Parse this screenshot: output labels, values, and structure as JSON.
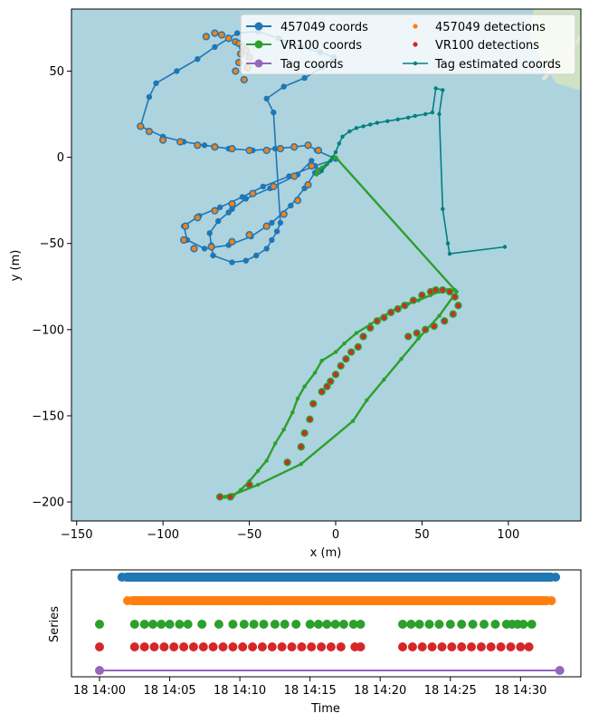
{
  "colors": {
    "c457049": "#1f77b4",
    "c457049_det": "#ff7f0e",
    "vr100": "#2ca02c",
    "vr100_det": "#d62728",
    "tag": "#9467bd",
    "tag_est": "#008080",
    "water": "#add3df",
    "land": "#cfe3c4"
  },
  "chart_data": [
    {
      "type": "scatter",
      "title": "",
      "xlabel": "x (m)",
      "ylabel": "y (m)",
      "xlim": [
        -153,
        142
      ],
      "ylim": [
        -211,
        86
      ],
      "xticks": [
        -150,
        -100,
        -50,
        0,
        50,
        100
      ],
      "yticks": [
        -200,
        -150,
        -100,
        -50,
        0,
        50
      ],
      "xtick_labels": [
        "−150",
        "−100",
        "−50",
        "0",
        "50",
        "100"
      ],
      "ytick_labels": [
        "−200",
        "−150",
        "−100",
        "−50",
        "0",
        "50"
      ],
      "grid": false,
      "background": "satellite basemap (water)",
      "legend": {
        "placement": "top-right",
        "entries": [
          {
            "label": "457049 coords",
            "kind": "line-marker",
            "color": "#1f77b4"
          },
          {
            "label": "457049 detections",
            "kind": "marker",
            "color": "#ff7f0e"
          },
          {
            "label": "VR100 coords",
            "kind": "line-marker",
            "color": "#2ca02c"
          },
          {
            "label": "VR100 detections",
            "kind": "marker",
            "color": "#d62728"
          },
          {
            "label": "Tag coords",
            "kind": "line-marker",
            "color": "#9467bd"
          },
          {
            "label": "Tag estimated coords",
            "kind": "line-small",
            "color": "#008080"
          }
        ]
      },
      "series": [
        {
          "name": "457049 coords",
          "x": [
            -14,
            -22,
            -38,
            -52,
            -60,
            -62,
            -68,
            -73,
            -72,
            -71,
            -60,
            -52,
            -46,
            -40,
            -37,
            -34,
            -32,
            -36,
            -40,
            -30,
            -18,
            -8,
            -1,
            -9,
            -20,
            -33,
            -45,
            -57,
            -70,
            -80,
            -92,
            -104,
            -108,
            -113,
            -100,
            -88,
            -76,
            -62,
            -48,
            -35,
            -24,
            -16,
            -11,
            0,
            -12,
            -27,
            -42,
            -54,
            -67,
            -79,
            -88,
            -86,
            -76,
            -62,
            -49,
            -37,
            -26,
            -18,
            -12
          ],
          "y": [
            -2,
            -10,
            -18,
            -24,
            -30,
            -32,
            -37,
            -44,
            -51,
            -57,
            -61,
            -60,
            -57,
            -53,
            -48,
            -43,
            -38,
            26,
            34,
            41,
            46,
            52,
            58,
            61,
            64,
            69,
            73,
            72,
            64,
            57,
            50,
            43,
            35,
            18,
            12,
            9,
            7,
            5,
            4,
            5,
            6,
            7,
            4,
            -1,
            -5,
            -11,
            -17,
            -23,
            -29,
            -34,
            -40,
            -48,
            -53,
            -51,
            -46,
            -38,
            -28,
            -18,
            -9
          ]
        },
        {
          "name": "457049 detections",
          "x": [
            -113,
            -108,
            -100,
            -90,
            -80,
            -70,
            -60,
            -50,
            -40,
            -32,
            -24,
            -16,
            -10,
            -14,
            -24,
            -36,
            -48,
            -60,
            -70,
            -80,
            -87,
            -88,
            -82,
            -72,
            -60,
            -50,
            -40,
            -30,
            -22,
            -16,
            -10,
            -75,
            -70,
            -66,
            -62,
            -58,
            -56,
            -54,
            -55,
            -56,
            -58,
            -52,
            -50,
            -51,
            -53
          ],
          "y": [
            18,
            15,
            10,
            9,
            7,
            6,
            5,
            4,
            4,
            5,
            6,
            7,
            4,
            -5,
            -11,
            -17,
            -21,
            -27,
            -31,
            -35,
            -40,
            -48,
            -53,
            -52,
            -49,
            -45,
            -40,
            -33,
            -25,
            -16,
            -8,
            70,
            72,
            71,
            69,
            67,
            66,
            64,
            60,
            55,
            50,
            62,
            58,
            52,
            45
          ]
        },
        {
          "name": "VR100 coords",
          "x": [
            -2,
            -5,
            -10,
            -11,
            -8,
            0,
            70,
            60,
            48,
            38,
            28,
            18,
            10,
            -20,
            -45,
            -60,
            -67,
            -64,
            -59,
            -55,
            -50,
            -45,
            -40,
            -35,
            -30,
            -25,
            -22,
            -18,
            -12,
            -8,
            0,
            5,
            12,
            20,
            28,
            35,
            42,
            48,
            55,
            60,
            65,
            69
          ],
          "y": [
            0,
            -4,
            -8,
            -10,
            -6,
            0,
            -78,
            -92,
            -105,
            -117,
            -129,
            -141,
            -153,
            -178,
            -190,
            -196,
            -197,
            -197,
            -196,
            -193,
            -188,
            -182,
            -176,
            -166,
            -158,
            -148,
            -140,
            -133,
            -125,
            -118,
            -113,
            -108,
            -102,
            -97,
            -92,
            -88,
            -85,
            -83,
            -80,
            -78,
            -77,
            -77
          ]
        },
        {
          "name": "VR100 detections",
          "x": [
            -67,
            -61,
            -50,
            -28,
            -20,
            -18,
            -15,
            -13,
            -8,
            -5,
            -3,
            0,
            3,
            6,
            9,
            13,
            16,
            20,
            24,
            28,
            32,
            36,
            40,
            45,
            50,
            55,
            58,
            62,
            66,
            69,
            71,
            68,
            63,
            57,
            52,
            47,
            42
          ],
          "y": [
            -197,
            -197,
            -190,
            -177,
            -168,
            -160,
            -152,
            -143,
            -136,
            -133,
            -130,
            -126,
            -121,
            -117,
            -113,
            -110,
            -104,
            -99,
            -95,
            -93,
            -90,
            -88,
            -86,
            -83,
            -80,
            -78,
            -77,
            -77,
            -78,
            -81,
            -86,
            -91,
            -95,
            -98,
            -100,
            -102,
            -104
          ]
        },
        {
          "name": "Tag estimated coords",
          "x": [
            -8,
            -3,
            0,
            2,
            4,
            8,
            12,
            16,
            20,
            24,
            30,
            36,
            42,
            46,
            52,
            56,
            58,
            62,
            60,
            62,
            65,
            66,
            98
          ],
          "y": [
            -8,
            -2,
            3,
            8,
            12,
            15,
            17,
            18,
            19,
            20,
            21,
            22,
            23,
            24,
            25,
            26,
            40,
            39,
            25,
            -30,
            -50,
            -56,
            -52
          ]
        }
      ]
    },
    {
      "type": "scatter",
      "title": "",
      "xlabel": "Time",
      "ylabel": "Series",
      "xticks": [
        "18 14:00",
        "18 14:05",
        "18 14:10",
        "18 14:15",
        "18 14:20",
        "18 14:25",
        "18 14:30"
      ],
      "xlim_minutes": [
        -2.0,
        34.3
      ],
      "grid": false,
      "rows": [
        {
          "name": "457049 coords",
          "color": "#1f77b4",
          "times_min": [
            1.6,
            4,
            6,
            8,
            10,
            12,
            14,
            16,
            18,
            20,
            22,
            24,
            26,
            28,
            30,
            32.5
          ],
          "continuous": true
        },
        {
          "name": "457049 detections",
          "color": "#ff7f0e",
          "times_min": [
            2.0,
            4,
            6,
            8,
            10,
            12,
            14,
            16,
            18,
            20,
            22,
            24,
            26,
            28,
            30,
            32.2
          ],
          "continuous": true
        },
        {
          "name": "VR100 coords",
          "color": "#2ca02c",
          "times_min": [
            0,
            2.5,
            3.2,
            3.8,
            4.4,
            5.0,
            5.7,
            6.3,
            7.3,
            8.5,
            9.5,
            10.3,
            11.0,
            11.7,
            12.5,
            13.2,
            14.0,
            15.0,
            15.6,
            16.2,
            16.8,
            17.4,
            18.1,
            18.6,
            21.6,
            22.2,
            22.8,
            23.5,
            24.2,
            25.0,
            25.8,
            26.6,
            27.4,
            28.2,
            29.0,
            29.4,
            29.8,
            30.2,
            30.8
          ],
          "continuous": false
        },
        {
          "name": "VR100 detections",
          "color": "#d62728",
          "times_min": [
            0,
            2.5,
            3.2,
            3.9,
            4.6,
            5.3,
            6.0,
            6.7,
            7.4,
            8.1,
            8.8,
            9.5,
            10.2,
            10.9,
            11.6,
            12.3,
            13.0,
            13.7,
            14.4,
            15.1,
            15.8,
            16.5,
            17.2,
            18.2,
            18.6,
            21.6,
            22.3,
            23.0,
            23.7,
            24.4,
            25.1,
            25.8,
            26.5,
            27.2,
            27.9,
            28.6,
            29.3,
            30.0,
            30.6
          ],
          "continuous": false
        },
        {
          "name": "Tag coords",
          "color": "#9467bd",
          "times_min": [
            0,
            32.8
          ],
          "continuous": false,
          "line": true
        }
      ]
    }
  ]
}
